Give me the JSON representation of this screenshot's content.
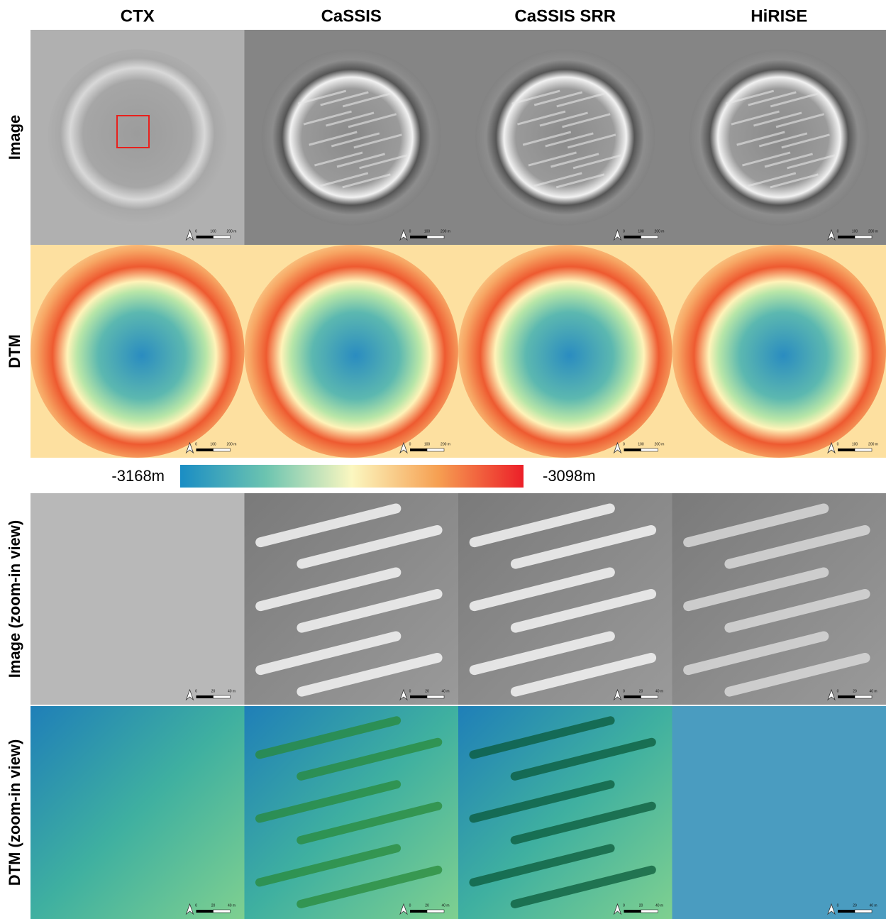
{
  "columns": [
    "CTX",
    "CaSSIS",
    "CaSSIS SRR",
    "HiRISE"
  ],
  "rows": [
    "Image",
    "DTM",
    "Image (zoom-in view)",
    "DTM (zoom-in view)"
  ],
  "colorbar": {
    "min_label": "-3168m",
    "max_label": "-3098m"
  },
  "scale_labels": {
    "overview": [
      "0",
      "100",
      "200 m"
    ],
    "zoom": [
      "0",
      "20",
      "40 m"
    ]
  }
}
